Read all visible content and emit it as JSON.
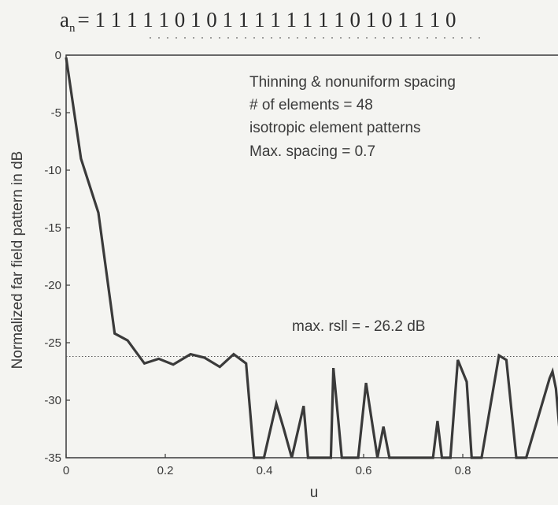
{
  "header": {
    "sequence_prefix": "a",
    "sequence_subscript": "n",
    "sequence_bits": "= 1 1 1 1 1 0 1 0 1 1 1 1 1 1 1 1 0 1 0 1 1 1 0"
  },
  "chart_data": {
    "type": "line",
    "title": "",
    "xlabel": "u",
    "ylabel": "Normalized far field pattern in dB",
    "xlim": [
      0,
      1
    ],
    "ylim": [
      -35,
      0
    ],
    "x_ticks": [
      "0",
      "0.2",
      "0.4",
      "0.6",
      "0.8",
      "1"
    ],
    "y_ticks": [
      "0",
      "-5",
      "-10",
      "-15",
      "-20",
      "-25",
      "-30",
      "-35"
    ],
    "x_tick_values": [
      0,
      0.2,
      0.4,
      0.6,
      0.8,
      1
    ],
    "y_tick_values": [
      0,
      -5,
      -10,
      -15,
      -20,
      -25,
      -30,
      -35
    ],
    "grid": false,
    "legend": "none",
    "series": [
      {
        "color": "#3a3a3a",
        "x": [
          0,
          0.03,
          0.065,
          0.098,
          0.124,
          0.158,
          0.187,
          0.216,
          0.251,
          0.279,
          0.31,
          0.338,
          0.363,
          0.379,
          0.399,
          0.424,
          0.439,
          0.455,
          0.479,
          0.488,
          0.499,
          0.534,
          0.539,
          0.556,
          0.589,
          0.605,
          0.628,
          0.64,
          0.652,
          0.664,
          0.74,
          0.749,
          0.758,
          0.775,
          0.79,
          0.808,
          0.818,
          0.838,
          0.873,
          0.888,
          0.908,
          0.928,
          0.975,
          0.981,
          0.988,
          1.0
        ],
        "y": [
          -0.2,
          -9,
          -13.7,
          -24.2,
          -24.8,
          -26.8,
          -26.4,
          -26.9,
          -26,
          -26.3,
          -27.1,
          -26,
          -26.8,
          -35,
          -35,
          -30.3,
          -32.5,
          -35,
          -30.5,
          -35,
          -35,
          -35,
          -27.2,
          -35,
          -35,
          -28.5,
          -35,
          -32.3,
          -35,
          -35,
          -35,
          -31.8,
          -35,
          -35,
          -26.5,
          -28.4,
          -35,
          -35,
          -26.1,
          -26.5,
          -35,
          -35,
          -28.1,
          -27.5,
          -29,
          -35
        ]
      }
    ],
    "reference_line": {
      "y": -26.2,
      "style": "dotted"
    },
    "annotations": [
      "Thinning & nonuniform spacing",
      "# of  elements = 48",
      "isotropic element patterns",
      "Max. spacing = 0.7"
    ],
    "rsll_annotation": "max. rsll = - 26.2 dB"
  }
}
